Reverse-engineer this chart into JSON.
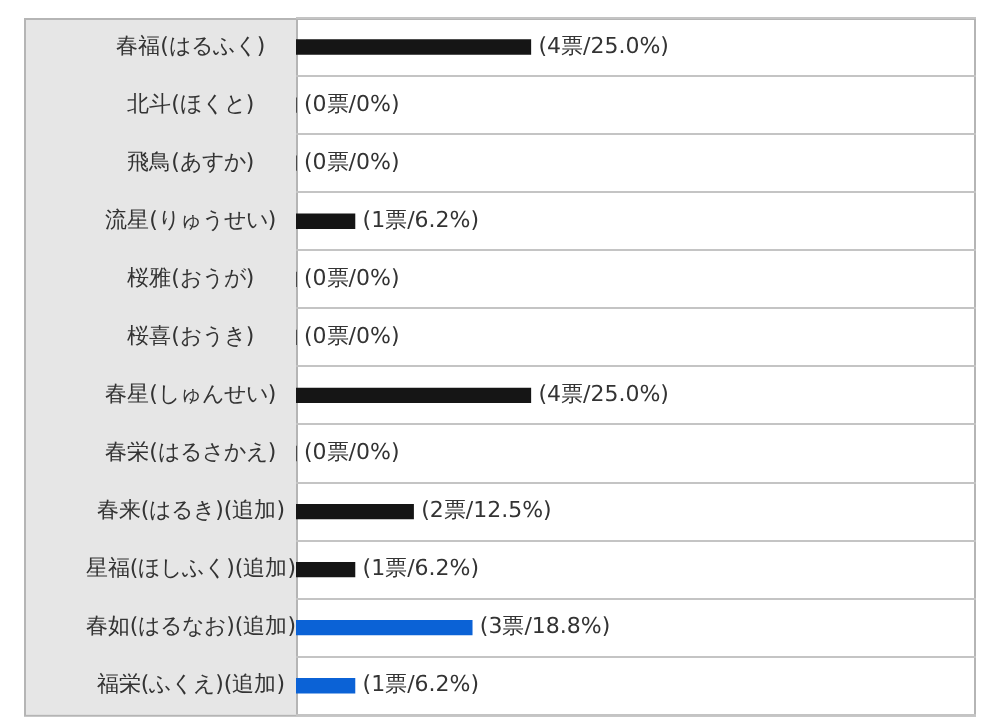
{
  "chart_data": {
    "type": "bar",
    "orientation": "horizontal",
    "grid": "y",
    "categories": [
      "春福(はるふく)",
      "北斗(ほくと)",
      "飛鳥(あすか)",
      "流星(りゅうせい)",
      "桜雅(おうが)",
      "桜喜(おうき)",
      "春星(しゅんせい)",
      "春栄(はるさかえ)",
      "春来(はるき)(追加)",
      "星福(ほしふく)(追加)",
      "春如(はるなお)(追加)",
      "福栄(ふくえ)(追加)"
    ],
    "values": [
      4,
      0,
      0,
      1,
      0,
      0,
      4,
      0,
      2,
      1,
      3,
      1
    ],
    "colors": [
      "#151515",
      "#151515",
      "#151515",
      "#151515",
      "#151515",
      "#151515",
      "#151515",
      "#151515",
      "#151515",
      "#151515",
      "#0b62d6",
      "#0b62d6"
    ],
    "value_labels": [
      "(4票/25.0%)",
      "(0票/0%)",
      "(0票/0%)",
      "(1票/6.2%)",
      "(0票/0%)",
      "(0票/0%)",
      "(4票/25.0%)",
      "(0票/0%)",
      "(2票/12.5%)",
      "(1票/6.2%)",
      "(3票/18.8%)",
      "(1票/6.2%)"
    ]
  }
}
